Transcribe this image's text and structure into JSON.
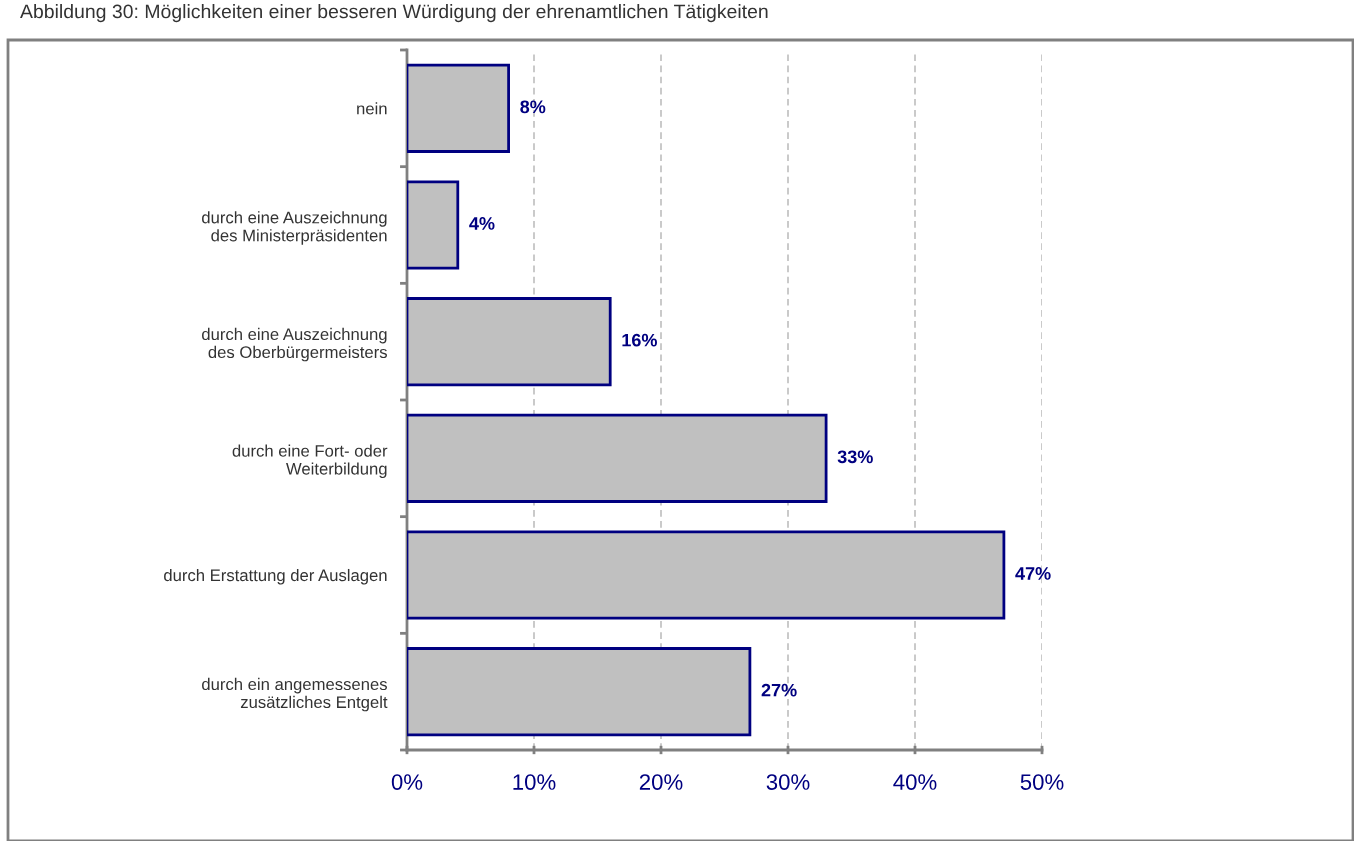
{
  "chart_data": {
    "type": "bar",
    "orientation": "horizontal",
    "title": "Abbildung 30: Möglichkeiten einer besseren Würdigung der ehrenamtlichen Tätigkeiten",
    "categories": [
      "nein",
      "durch eine Auszeichnung\ndes Ministerpräsidenten",
      "durch eine Auszeichnung\ndes Oberbürgermeisters",
      "durch eine Fort- oder\nWeiterbildung",
      "durch Erstattung der Auslagen",
      "durch ein angemessenes\nzusätzliches Entgelt"
    ],
    "values": [
      8,
      4,
      16,
      33,
      47,
      27
    ],
    "value_labels": [
      "8%",
      "4%",
      "16%",
      "33%",
      "47%",
      "27%"
    ],
    "color": "#c0c0c0",
    "xlim": [
      0,
      50
    ],
    "xticks": [
      {
        "value": 0,
        "label": "0%"
      },
      {
        "value": 10,
        "label": "10%"
      },
      {
        "value": 20,
        "label": "20%"
      },
      {
        "value": 30,
        "label": "30%"
      },
      {
        "value": 40,
        "label": "40%"
      },
      {
        "value": 50,
        "label": "50%"
      }
    ],
    "grid": "x"
  }
}
